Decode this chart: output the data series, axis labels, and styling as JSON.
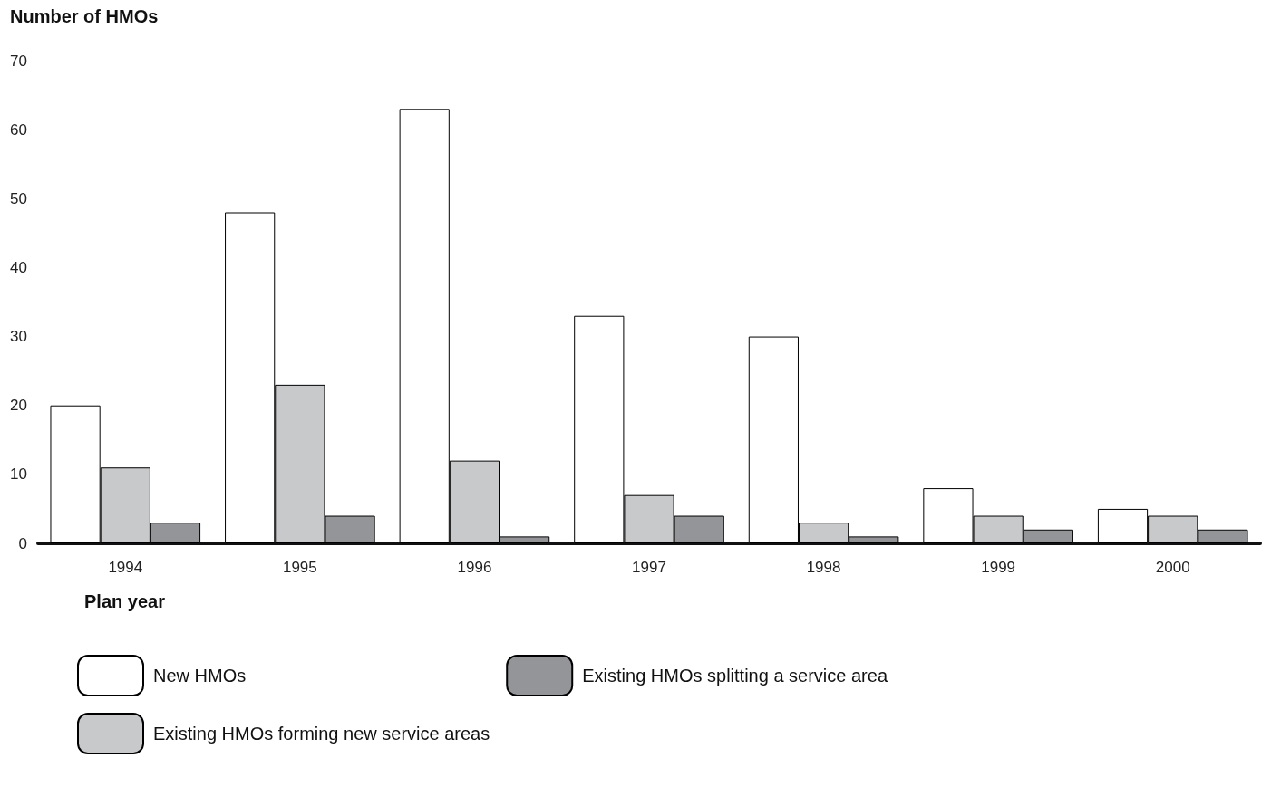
{
  "chart_data": {
    "type": "bar",
    "ylabel": "Number of HMOs",
    "xlabel": "Plan year",
    "categories": [
      "1994",
      "1995",
      "1996",
      "1997",
      "1998",
      "1999",
      "2000"
    ],
    "series": [
      {
        "name": "New HMOs",
        "color": "#ffffff",
        "values": [
          20,
          48,
          63,
          33,
          30,
          8,
          5
        ]
      },
      {
        "name": "Existing HMOs forming new service areas",
        "color": "#c8c9cb",
        "values": [
          11,
          23,
          12,
          7,
          3,
          4,
          4
        ]
      },
      {
        "name": "Existing HMOs splitting a service area",
        "color": "#939598",
        "values": [
          3,
          4,
          1,
          4,
          1,
          2,
          2
        ]
      }
    ],
    "ylim": [
      0,
      70
    ],
    "yticks": [
      0,
      10,
      20,
      30,
      40,
      50,
      60,
      70
    ],
    "grid": false,
    "legend": "bottom"
  }
}
